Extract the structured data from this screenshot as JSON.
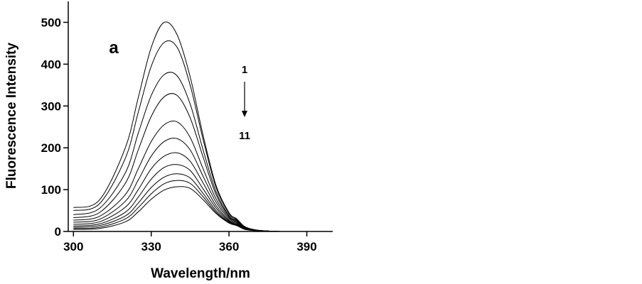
{
  "chart_data": {
    "type": "line",
    "x_label": "Wavelength/nm",
    "y_label": "Fluorescence Intensity",
    "annotations": [
      "a",
      "1",
      "11"
    ],
    "x": [
      300,
      310,
      320,
      325,
      330,
      335,
      340,
      345,
      350,
      355,
      360,
      363,
      366,
      370,
      375,
      380,
      390,
      400
    ],
    "series": [
      {
        "color": "#000000",
        "values": [
          57,
          75,
          200,
          320,
          440,
          500,
          470,
          370,
          230,
          110,
          45,
          30,
          12,
          4,
          1,
          0,
          0,
          0
        ]
      },
      {
        "color": "#000000",
        "values": [
          50,
          66,
          175,
          285,
          395,
          452,
          440,
          350,
          220,
          105,
          42,
          28,
          11,
          4,
          1,
          0,
          0,
          0
        ]
      },
      {
        "color": "#000000",
        "values": [
          40,
          55,
          140,
          235,
          325,
          375,
          372,
          305,
          195,
          95,
          38,
          26,
          10,
          3,
          1,
          0,
          0,
          0
        ]
      },
      {
        "color": "#000000",
        "values": [
          33,
          45,
          115,
          195,
          275,
          322,
          325,
          272,
          178,
          88,
          36,
          25,
          10,
          3,
          1,
          0,
          0,
          0
        ]
      },
      {
        "color": "#000000",
        "values": [
          27,
          36,
          88,
          150,
          215,
          255,
          262,
          225,
          150,
          78,
          33,
          23,
          9,
          3,
          1,
          0,
          0,
          0
        ]
      },
      {
        "color": "#000000",
        "values": [
          22,
          29,
          72,
          123,
          180,
          215,
          222,
          195,
          132,
          70,
          30,
          21,
          8,
          3,
          1,
          0,
          0,
          0
        ]
      },
      {
        "color": "#000000",
        "values": [
          17,
          23,
          58,
          100,
          150,
          180,
          188,
          168,
          116,
          62,
          27,
          19,
          7,
          2,
          1,
          0,
          0,
          0
        ]
      },
      {
        "color": "#000000",
        "values": [
          13,
          18,
          46,
          82,
          125,
          153,
          160,
          146,
          102,
          56,
          25,
          17,
          7,
          2,
          1,
          0,
          0,
          0
        ]
      },
      {
        "color": "#000000",
        "values": [
          10,
          14,
          37,
          68,
          105,
          130,
          138,
          128,
          91,
          50,
          23,
          16,
          6,
          2,
          1,
          0,
          0,
          0
        ]
      },
      {
        "color": "#000000",
        "values": [
          7,
          10,
          30,
          57,
          90,
          114,
          122,
          115,
          83,
          46,
          21,
          15,
          6,
          2,
          1,
          0,
          0,
          0
        ]
      },
      {
        "color": "#000000",
        "values": [
          5,
          7,
          23,
          47,
          77,
          99,
          107,
          103,
          76,
          43,
          20,
          14,
          5,
          2,
          1,
          0,
          0,
          0
        ]
      }
    ],
    "xlim": [
      298,
      400
    ],
    "xticks": [
      300,
      330,
      360,
      390
    ],
    "ylim": [
      0,
      550
    ],
    "yticks": [
      0,
      100,
      200,
      300,
      400,
      500
    ]
  }
}
